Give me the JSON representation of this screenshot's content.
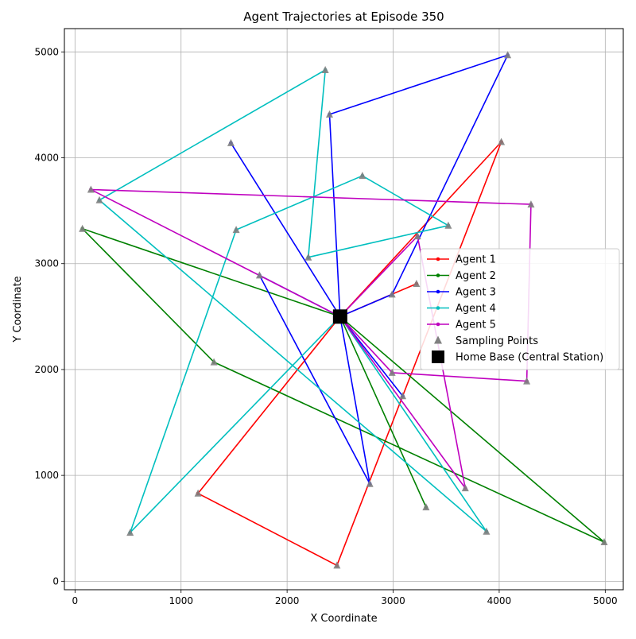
{
  "chart_data": {
    "type": "line",
    "title": "Agent Trajectories at Episode 350",
    "xlabel": "X Coordinate",
    "ylabel": "Y Coordinate",
    "xlim": [
      -100,
      5170
    ],
    "ylim": [
      -80,
      5220
    ],
    "xticks": [
      0,
      1000,
      2000,
      3000,
      4000,
      5000
    ],
    "yticks": [
      0,
      1000,
      2000,
      3000,
      4000,
      5000
    ],
    "grid": true,
    "legend_position": "center-right",
    "home_base": {
      "name": "Home Base (Central Station)",
      "x": 2500,
      "y": 2500,
      "color": "#000000"
    },
    "sampling_points": {
      "name": "Sampling Points",
      "color": "#808080"
    },
    "series": [
      {
        "name": "Agent 1",
        "color": "#ff0000",
        "points": [
          [
            2500,
            2500
          ],
          [
            3220,
            2810
          ],
          [
            2500,
            2500
          ],
          [
            4020,
            4150
          ],
          [
            2470,
            150
          ],
          [
            1160,
            830
          ],
          [
            2500,
            2500
          ]
        ]
      },
      {
        "name": "Agent 2",
        "color": "#008000",
        "points": [
          [
            2500,
            2500
          ],
          [
            70,
            3330
          ],
          [
            1310,
            2070
          ],
          [
            4990,
            370
          ],
          [
            2500,
            2500
          ],
          [
            3310,
            700
          ],
          [
            2500,
            2500
          ]
        ]
      },
      {
        "name": "Agent 3",
        "color": "#0000ff",
        "points": [
          [
            2500,
            2500
          ],
          [
            1740,
            2890
          ],
          [
            2780,
            920
          ],
          [
            2500,
            2500
          ],
          [
            1470,
            4140
          ],
          [
            2500,
            2500
          ],
          [
            3090,
            1750
          ],
          [
            2500,
            2500
          ],
          [
            2990,
            2710
          ],
          [
            4080,
            4970
          ],
          [
            2400,
            4410
          ],
          [
            2500,
            2500
          ]
        ]
      },
      {
        "name": "Agent 4",
        "color": "#00bfbf",
        "points": [
          [
            2500,
            2500
          ],
          [
            520,
            460
          ],
          [
            1520,
            3320
          ],
          [
            2710,
            3830
          ],
          [
            3520,
            3360
          ],
          [
            2200,
            3060
          ],
          [
            2360,
            4830
          ],
          [
            230,
            3600
          ],
          [
            3880,
            470
          ],
          [
            2500,
            2500
          ]
        ]
      },
      {
        "name": "Agent 5",
        "color": "#bf00bf",
        "points": [
          [
            2500,
            2500
          ],
          [
            150,
            3700
          ],
          [
            4300,
            3560
          ],
          [
            4260,
            1890
          ],
          [
            2990,
            1970
          ],
          [
            2500,
            2500
          ],
          [
            3230,
            3260
          ],
          [
            3680,
            880
          ],
          [
            2500,
            2500
          ]
        ]
      }
    ]
  }
}
